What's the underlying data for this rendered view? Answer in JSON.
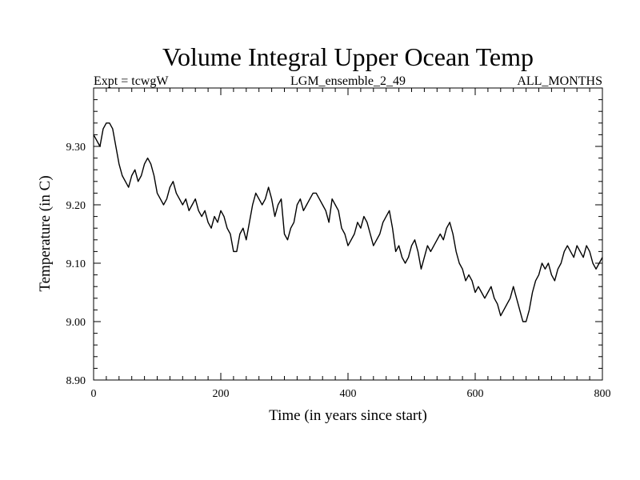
{
  "chart_data": {
    "type": "line",
    "title": "Volume Integral Upper Ocean Temp",
    "subtitle_left": "Expt = tcwgW",
    "subtitle_center": "LGM_ensemble_2_49",
    "subtitle_right": "ALL_MONTHS",
    "xlabel": "Time (in years since start)",
    "ylabel": "Temperature (in C)",
    "xlim": [
      0,
      800
    ],
    "ylim": [
      8.9,
      9.4
    ],
    "xticks": [
      0,
      200,
      400,
      600,
      800
    ],
    "xtick_labels": [
      "0",
      "200",
      "400",
      "600",
      "800"
    ],
    "yticks": [
      8.9,
      9.0,
      9.1,
      9.2,
      9.3
    ],
    "ytick_labels": [
      "8.90",
      "9.00",
      "9.10",
      "9.20",
      "9.30"
    ],
    "x_minor_step": 20,
    "y_minor_step": 0.02,
    "grid": false,
    "line_color": "#000000",
    "series": [
      {
        "name": "volume_integral_upper_ocean_temp",
        "x": [
          0,
          5,
          10,
          15,
          20,
          25,
          30,
          35,
          40,
          45,
          50,
          55,
          60,
          65,
          70,
          75,
          80,
          85,
          90,
          95,
          100,
          105,
          110,
          115,
          120,
          125,
          130,
          135,
          140,
          145,
          150,
          155,
          160,
          165,
          170,
          175,
          180,
          185,
          190,
          195,
          200,
          205,
          210,
          215,
          220,
          225,
          230,
          235,
          240,
          245,
          250,
          255,
          260,
          265,
          270,
          275,
          280,
          285,
          290,
          295,
          300,
          305,
          310,
          315,
          320,
          325,
          330,
          335,
          340,
          345,
          350,
          355,
          360,
          365,
          370,
          375,
          380,
          385,
          390,
          395,
          400,
          405,
          410,
          415,
          420,
          425,
          430,
          435,
          440,
          445,
          450,
          455,
          460,
          465,
          470,
          475,
          480,
          485,
          490,
          495,
          500,
          505,
          510,
          515,
          520,
          525,
          530,
          535,
          540,
          545,
          550,
          555,
          560,
          565,
          570,
          575,
          580,
          585,
          590,
          595,
          600,
          605,
          610,
          615,
          620,
          625,
          630,
          635,
          640,
          645,
          650,
          655,
          660,
          665,
          670,
          675,
          680,
          685,
          690,
          695,
          700,
          705,
          710,
          715,
          720,
          725,
          730,
          735,
          740,
          745,
          750,
          755,
          760,
          765,
          770,
          775,
          780,
          785,
          790,
          795,
          800
        ],
        "values": [
          9.32,
          9.31,
          9.3,
          9.33,
          9.34,
          9.34,
          9.33,
          9.3,
          9.27,
          9.25,
          9.24,
          9.23,
          9.25,
          9.26,
          9.24,
          9.25,
          9.27,
          9.28,
          9.27,
          9.25,
          9.22,
          9.21,
          9.2,
          9.21,
          9.23,
          9.24,
          9.22,
          9.21,
          9.2,
          9.21,
          9.19,
          9.2,
          9.21,
          9.19,
          9.18,
          9.19,
          9.17,
          9.16,
          9.18,
          9.17,
          9.19,
          9.18,
          9.16,
          9.15,
          9.12,
          9.12,
          9.15,
          9.16,
          9.14,
          9.17,
          9.2,
          9.22,
          9.21,
          9.2,
          9.21,
          9.23,
          9.21,
          9.18,
          9.2,
          9.21,
          9.15,
          9.14,
          9.16,
          9.17,
          9.2,
          9.21,
          9.19,
          9.2,
          9.21,
          9.22,
          9.22,
          9.21,
          9.2,
          9.19,
          9.17,
          9.21,
          9.2,
          9.19,
          9.16,
          9.15,
          9.13,
          9.14,
          9.15,
          9.17,
          9.16,
          9.18,
          9.17,
          9.15,
          9.13,
          9.14,
          9.15,
          9.17,
          9.18,
          9.19,
          9.16,
          9.12,
          9.13,
          9.11,
          9.1,
          9.11,
          9.13,
          9.14,
          9.12,
          9.09,
          9.11,
          9.13,
          9.12,
          9.13,
          9.14,
          9.15,
          9.14,
          9.16,
          9.17,
          9.15,
          9.12,
          9.1,
          9.09,
          9.07,
          9.08,
          9.07,
          9.05,
          9.06,
          9.05,
          9.04,
          9.05,
          9.06,
          9.04,
          9.03,
          9.01,
          9.02,
          9.03,
          9.04,
          9.06,
          9.04,
          9.02,
          9.0,
          9.0,
          9.02,
          9.05,
          9.07,
          9.08,
          9.1,
          9.09,
          9.1,
          9.08,
          9.07,
          9.09,
          9.1,
          9.12,
          9.13,
          9.12,
          9.11,
          9.13,
          9.12,
          9.11,
          9.13,
          9.12,
          9.1,
          9.09,
          9.1,
          9.11
        ]
      }
    ]
  }
}
